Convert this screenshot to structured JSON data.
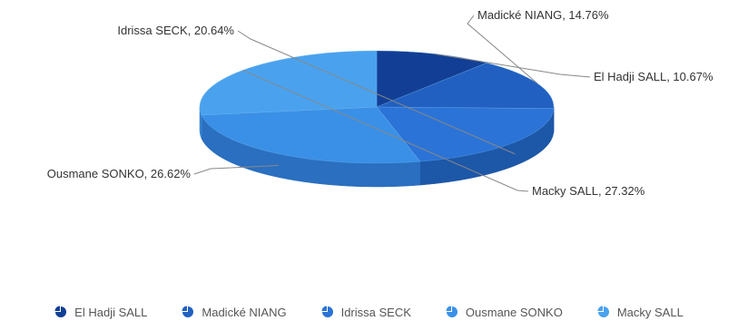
{
  "chart_data": {
    "type": "pie",
    "title": "",
    "three_d": true,
    "slices": [
      {
        "label": "El Hadji SALL",
        "value": 10.67,
        "display": "El Hadji SALL, 10.67%",
        "color": "#123f95",
        "side": "#0c2e6e"
      },
      {
        "label": "Madické NIANG",
        "value": 14.76,
        "display": "Madické NIANG, 14.76%",
        "color": "#2160c0",
        "side": "#174896"
      },
      {
        "label": "Idrissa SECK",
        "value": 20.64,
        "display": "Idrissa SECK, 20.64%",
        "color": "#2b73d6",
        "side": "#1d57a8"
      },
      {
        "label": "Ousmane SONKO",
        "value": 26.62,
        "display": "Ousmane SONKO, 26.62%",
        "color": "#3a90e6",
        "side": "#2a6fc0"
      },
      {
        "label": "Macky SALL",
        "value": 27.32,
        "display": "Macky SALL, 27.32%",
        "color": "#4aa2ee",
        "side": "#3583cf"
      }
    ],
    "legend_position": "bottom"
  },
  "legend": {
    "items": [
      {
        "label": "El Hadji SALL",
        "color": "#123f95"
      },
      {
        "label": "Madické NIANG",
        "color": "#2160c0"
      },
      {
        "label": "Idrissa SECK",
        "color": "#2b73d6"
      },
      {
        "label": "Ousmane SONKO",
        "color": "#3a90e6"
      },
      {
        "label": "Macky SALL",
        "color": "#4aa2ee"
      }
    ]
  }
}
